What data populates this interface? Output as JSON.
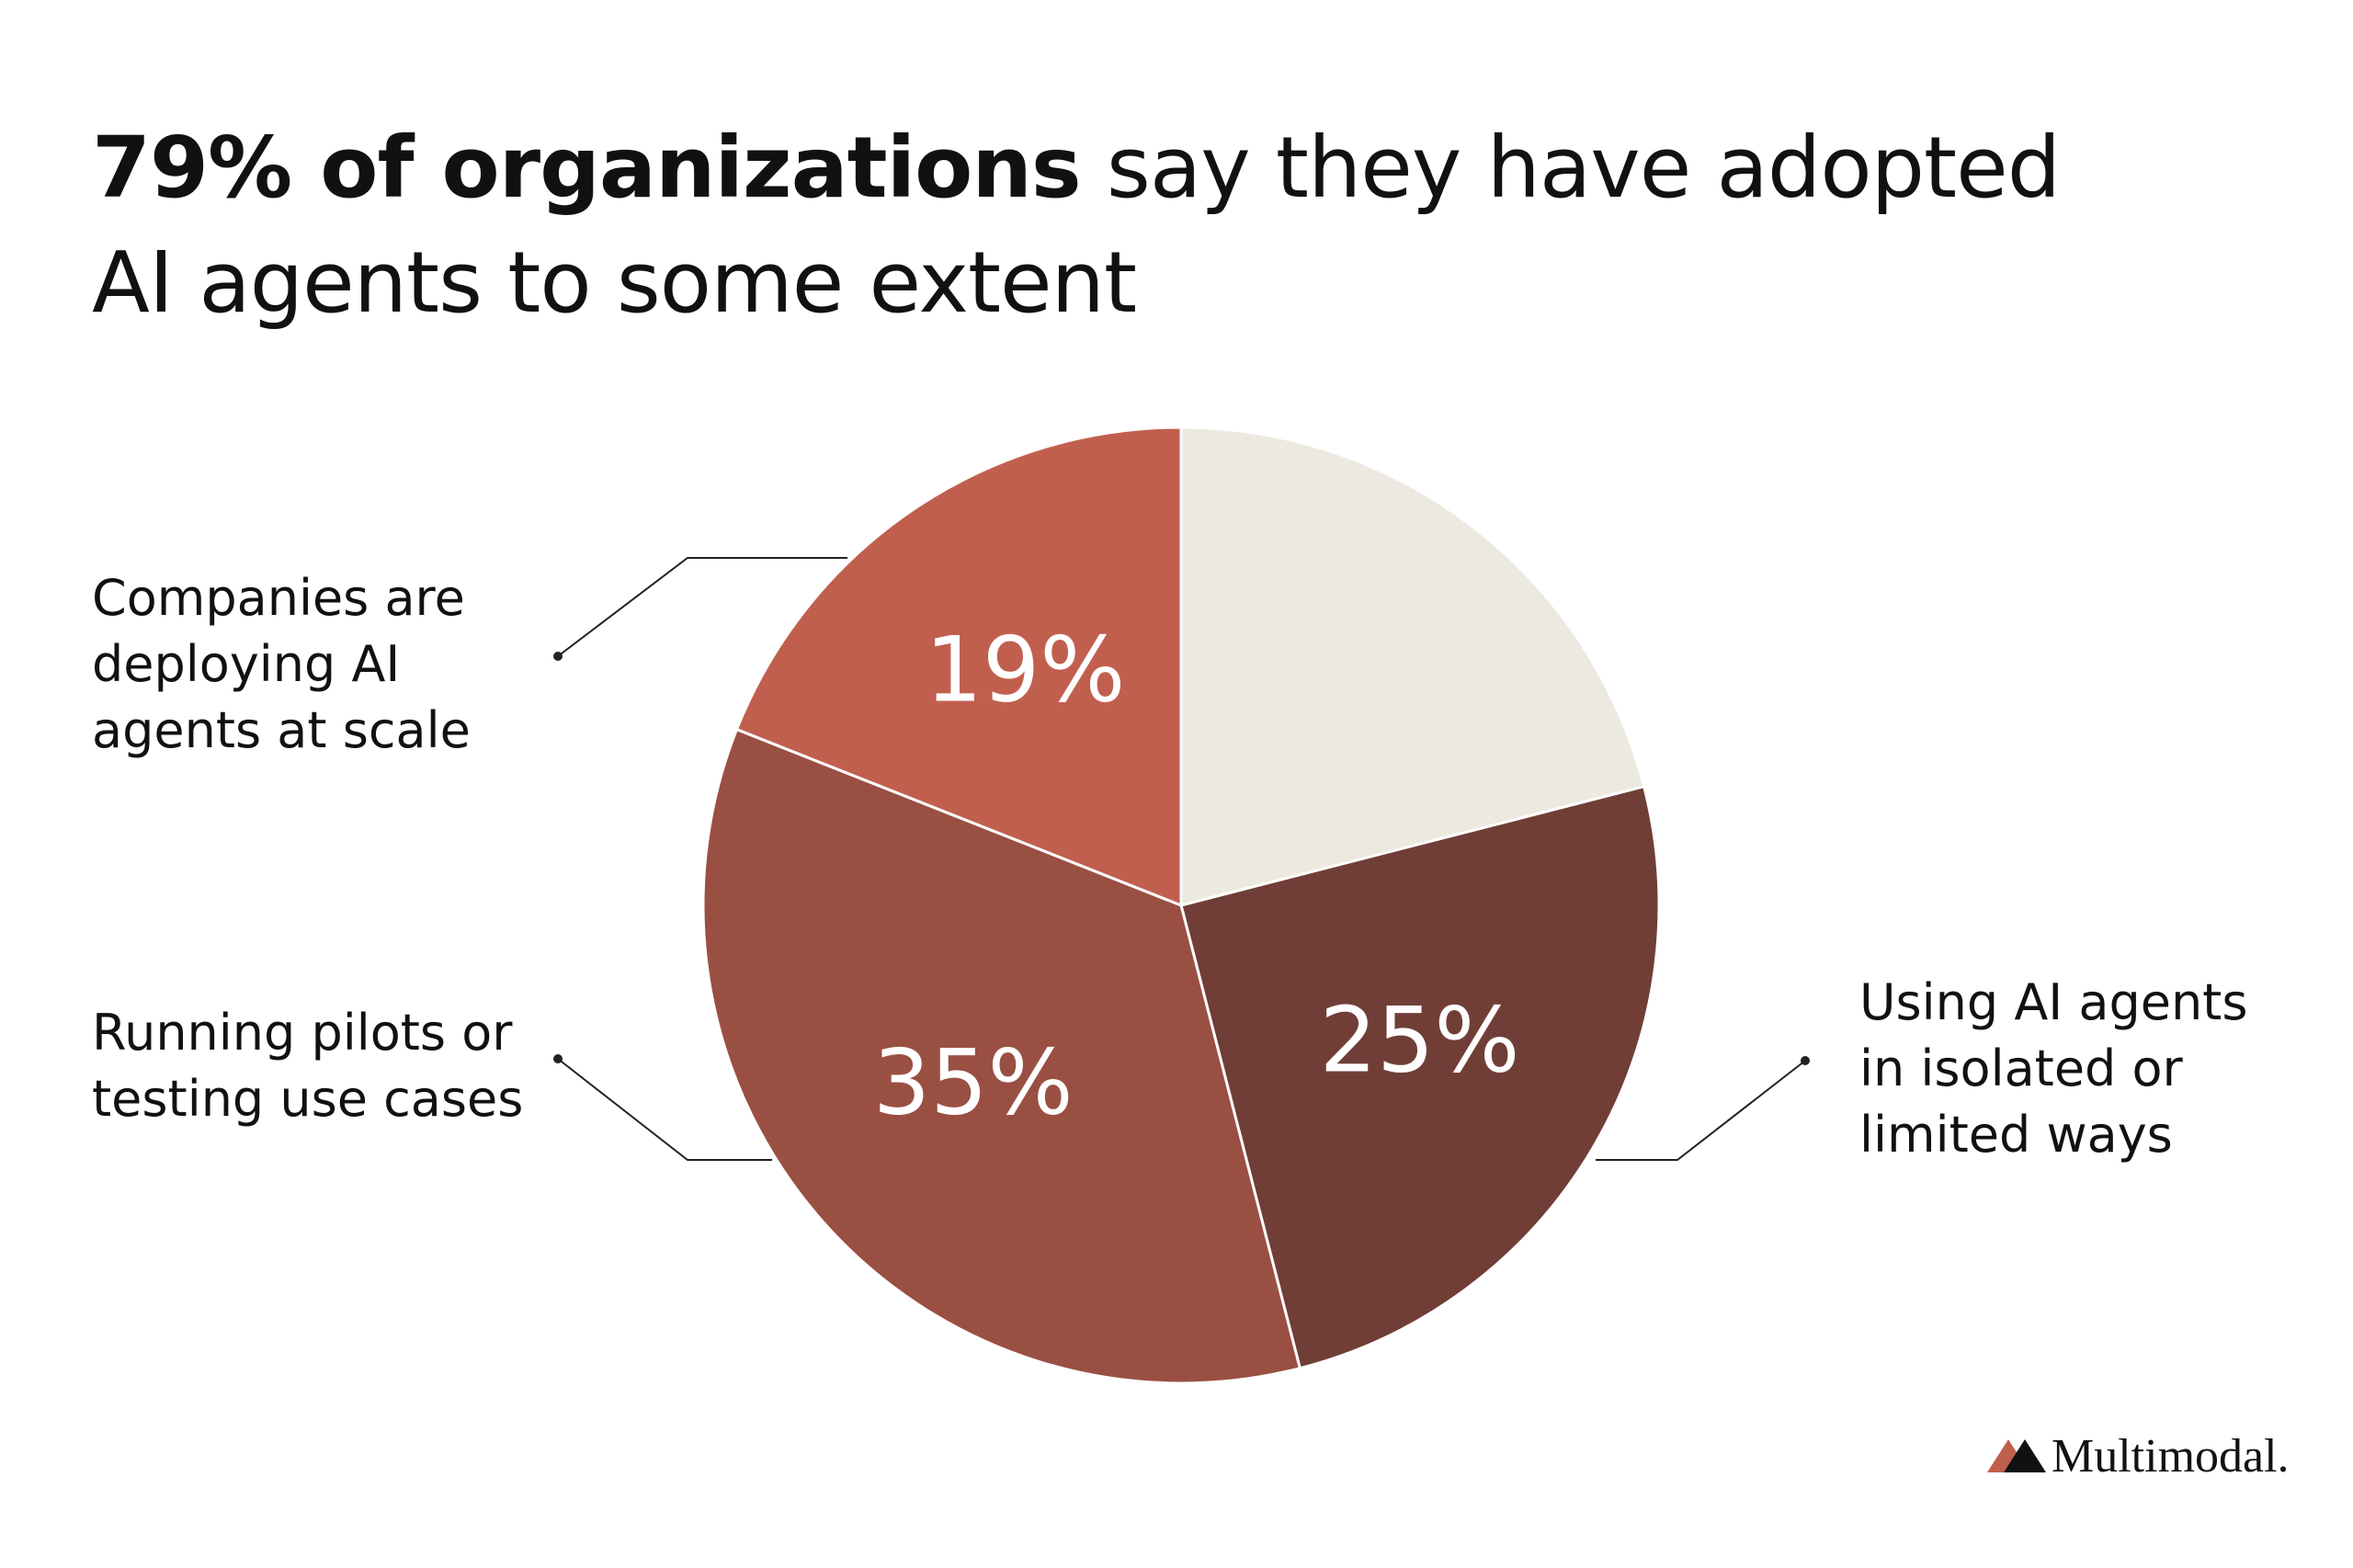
{
  "chart_data": {
    "type": "pie",
    "title_emphasis": "79% of organizations",
    "title": "say they have adopted AI agents to some extent",
    "categories": [
      null,
      "Using AI agents in isolated or limited ways",
      "Running pilots or testing use cases",
      "Companies are deploying AI agents at scale"
    ],
    "values": [
      21,
      25,
      35,
      19
    ],
    "value_labels": [
      null,
      "25%",
      "35%",
      "19%"
    ],
    "colors": [
      "#ece9e0",
      "#703e36",
      "#9a4f43",
      "#c15f4e"
    ],
    "brand": "Multimodal."
  }
}
